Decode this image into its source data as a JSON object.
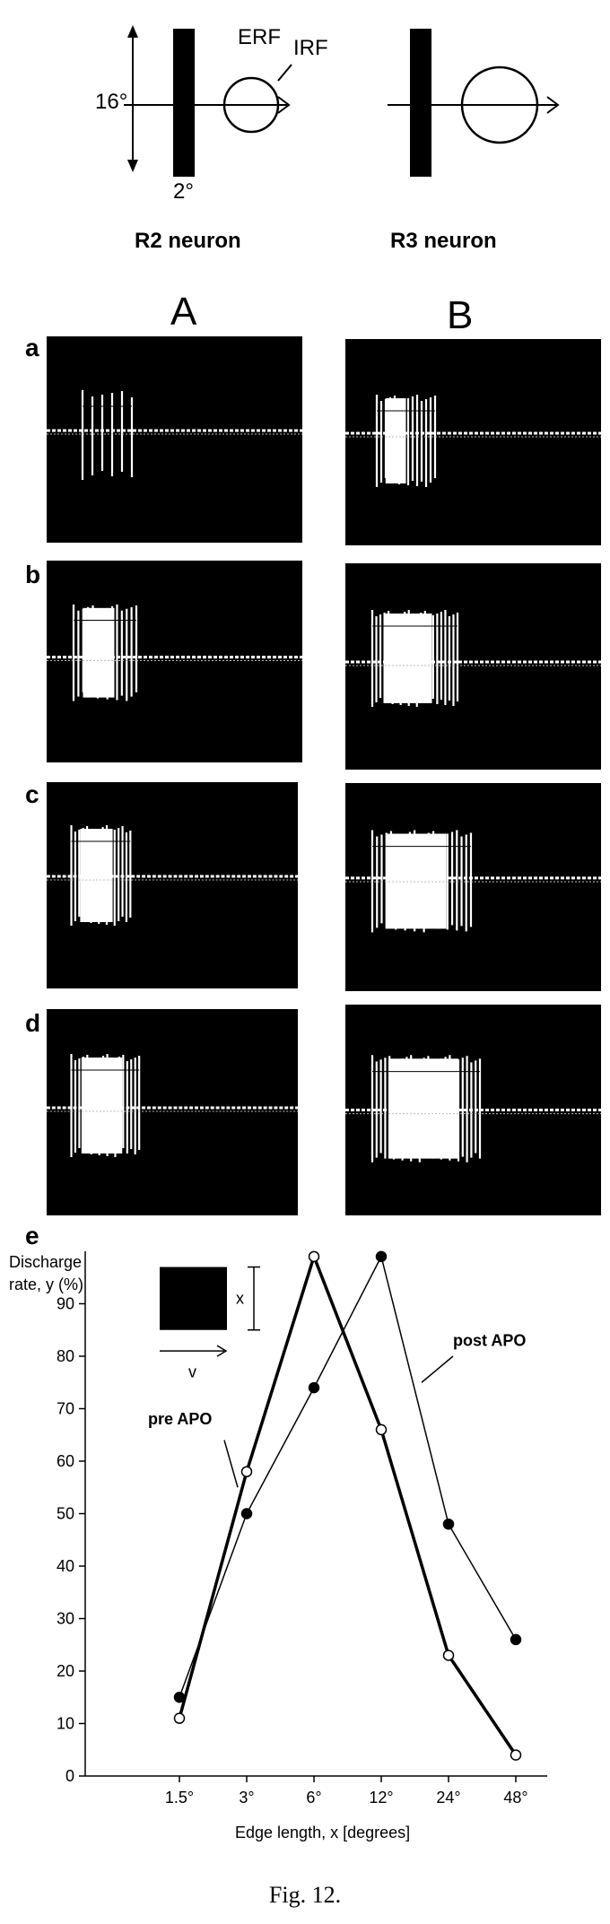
{
  "diagram": {
    "dim_height": "16°",
    "dim_width": "2°",
    "erf_label": "ERF",
    "irf_label": "IRF",
    "left_neuron": "R2 neuron",
    "right_neuron": "R3 neuron"
  },
  "columns": [
    "A",
    "B"
  ],
  "rows": [
    "a",
    "b",
    "c",
    "d"
  ],
  "panel_e_letter": "e",
  "chart_data": {
    "type": "line",
    "xlabel": "Edge length, x [degrees]",
    "ylabel_line1": "Discharge",
    "ylabel_line2": "rate, y (%)",
    "categories": [
      "1.5°",
      "3°",
      "6°",
      "12°",
      "24°",
      "48°"
    ],
    "yticks": [
      0,
      10,
      20,
      30,
      40,
      50,
      60,
      70,
      80,
      90
    ],
    "ylim": [
      0,
      100
    ],
    "series": [
      {
        "name": "pre APO",
        "marker": "open-circle",
        "line": "thick",
        "values": [
          11,
          58,
          99,
          66,
          23,
          4
        ]
      },
      {
        "name": "post APO",
        "marker": "filled-circle",
        "line": "thin",
        "values": [
          15,
          50,
          74,
          99,
          48,
          26
        ]
      }
    ],
    "inset": {
      "x_label": "x",
      "v_label": "v"
    }
  },
  "caption": "Fig. 12."
}
